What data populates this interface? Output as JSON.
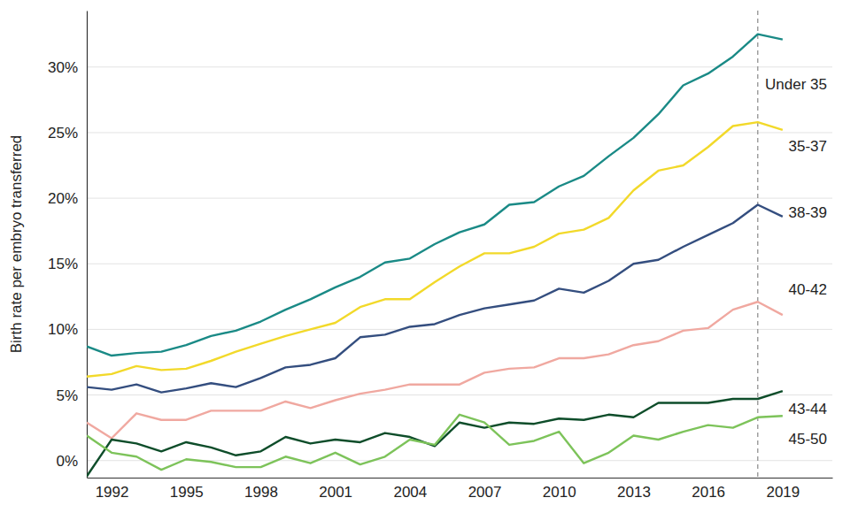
{
  "chart_data": {
    "type": "line",
    "y_label": "Birth rate per embryo transferred",
    "x": [
      1991,
      1992,
      1993,
      1994,
      1995,
      1996,
      1997,
      1998,
      1999,
      2000,
      2001,
      2002,
      2003,
      2004,
      2005,
      2006,
      2007,
      2008,
      2009,
      2010,
      2011,
      2012,
      2013,
      2014,
      2015,
      2016,
      2017,
      2018,
      2019
    ],
    "series": [
      {
        "name": "Under 35",
        "color": "#1a8a86",
        "values": [
          8.7,
          8.0,
          8.2,
          8.3,
          8.8,
          9.5,
          9.9,
          10.6,
          11.5,
          12.3,
          13.2,
          14.0,
          15.1,
          15.4,
          16.5,
          17.4,
          18.0,
          19.5,
          19.7,
          20.9,
          21.7,
          23.2,
          24.6,
          26.4,
          28.6,
          29.5,
          30.8,
          32.5,
          32.1
        ]
      },
      {
        "name": "35-37",
        "color": "#f2d92a",
        "values": [
          6.4,
          6.6,
          7.2,
          6.9,
          7.0,
          7.6,
          8.3,
          8.9,
          9.5,
          10.0,
          10.5,
          11.7,
          12.3,
          12.3,
          13.6,
          14.8,
          15.8,
          15.8,
          16.3,
          17.3,
          17.6,
          18.5,
          20.6,
          22.1,
          22.5,
          23.9,
          25.5,
          25.8,
          25.2
        ]
      },
      {
        "name": "38-39",
        "color": "#344e7f",
        "values": [
          5.6,
          5.4,
          5.8,
          5.2,
          5.5,
          5.9,
          5.6,
          6.3,
          7.1,
          7.3,
          7.8,
          9.4,
          9.6,
          10.2,
          10.4,
          11.1,
          11.6,
          11.9,
          12.2,
          13.1,
          12.8,
          13.7,
          15.0,
          15.3,
          16.3,
          17.2,
          18.1,
          19.5,
          18.6
        ]
      },
      {
        "name": "40-42",
        "color": "#f0a8a0",
        "values": [
          2.9,
          1.7,
          3.6,
          3.1,
          3.1,
          3.8,
          3.8,
          3.8,
          4.5,
          4.0,
          4.6,
          5.1,
          5.4,
          5.8,
          5.8,
          5.8,
          6.7,
          7.0,
          7.1,
          7.8,
          7.8,
          8.1,
          8.8,
          9.1,
          9.9,
          10.1,
          11.5,
          12.1,
          11.1
        ]
      },
      {
        "name": "43-44",
        "color": "#0e4d2a",
        "values": [
          -1.2,
          1.6,
          1.3,
          0.7,
          1.4,
          1.0,
          0.4,
          0.7,
          1.8,
          1.3,
          1.6,
          1.4,
          2.1,
          1.8,
          1.1,
          2.9,
          2.5,
          2.9,
          2.8,
          3.2,
          3.1,
          3.5,
          3.3,
          4.4,
          4.4,
          4.4,
          4.7,
          4.7,
          5.3
        ]
      },
      {
        "name": "45-50",
        "color": "#7dc35a",
        "values": [
          1.9,
          0.6,
          0.3,
          -0.7,
          0.1,
          -0.1,
          -0.5,
          -0.5,
          0.3,
          -0.2,
          0.6,
          -0.3,
          0.3,
          1.6,
          1.2,
          3.5,
          2.9,
          1.2,
          1.5,
          2.2,
          -0.2,
          0.6,
          1.9,
          1.6,
          2.2,
          2.7,
          2.5,
          3.3,
          3.4
        ]
      }
    ],
    "xlim": [
      1991,
      2021
    ],
    "xticks": [
      1992,
      1995,
      1998,
      2001,
      2004,
      2007,
      2010,
      2013,
      2016,
      2019
    ],
    "ylim": [
      -1.3,
      34.3
    ],
    "yticks": [
      {
        "value": 0,
        "label": "0%"
      },
      {
        "value": 5,
        "label": "5%"
      },
      {
        "value": 10,
        "label": "10%"
      },
      {
        "value": 15,
        "label": "15%"
      },
      {
        "value": 20,
        "label": "20%"
      },
      {
        "value": 25,
        "label": "25%"
      },
      {
        "value": 30,
        "label": "30%"
      }
    ],
    "reference_x": 2018,
    "grid": true
  }
}
